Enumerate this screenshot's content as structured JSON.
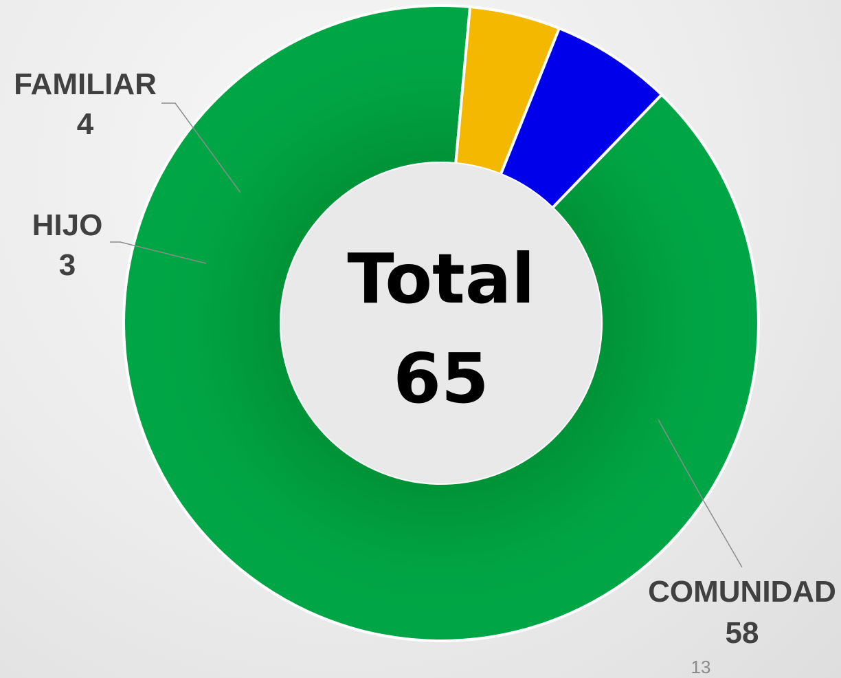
{
  "chart_data": {
    "type": "donut",
    "categories": [
      "COMUNIDAD",
      "HIJO",
      "FAMILIAR"
    ],
    "values": [
      58,
      3,
      4
    ],
    "colors": [
      "#00a443",
      "#f5b800",
      "#0000e6"
    ],
    "center_label": "Total",
    "center_value": "65",
    "data_labels": "category and value",
    "legend": "none"
  },
  "page_number": "13"
}
